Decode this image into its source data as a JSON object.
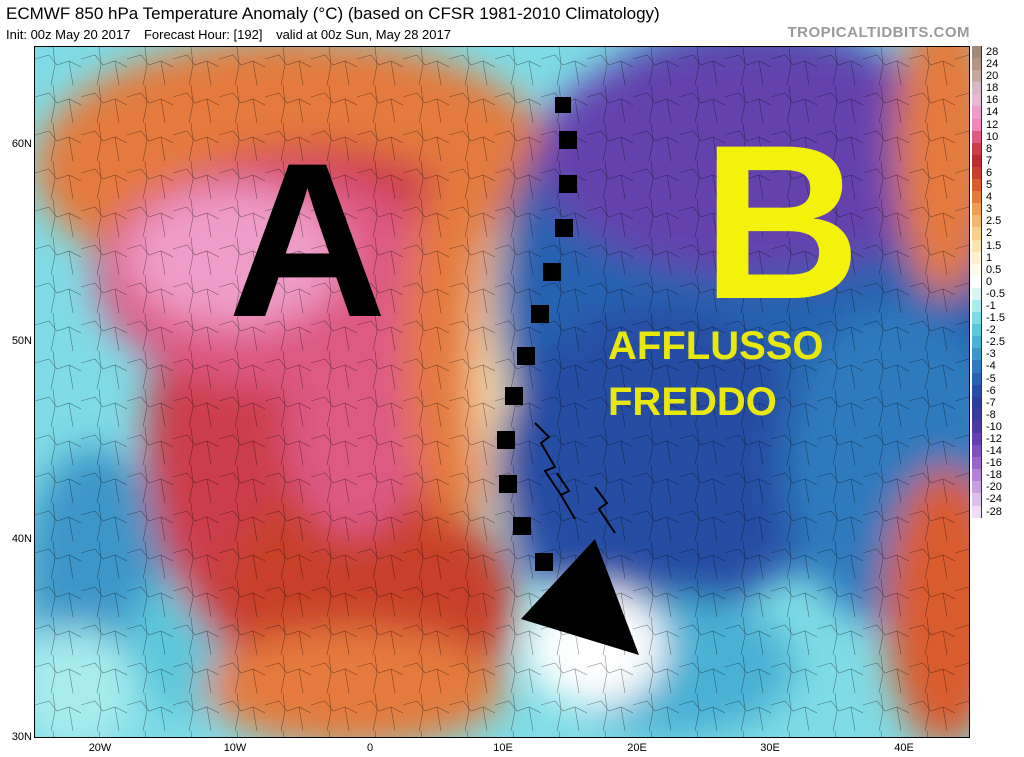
{
  "header": {
    "title": "ECMWF 850 hPa Temperature Anomaly (°C) (based on CFSR 1981-2010 Climatology)",
    "init": "Init: 00z May 20 2017",
    "forecast_hour": "Forecast Hour: [192]",
    "valid": "valid at 00z Sun, May 28 2017",
    "brand": "TROPICALTIDBITS.COM"
  },
  "axes": {
    "lat_labels": [
      "60N",
      "50N",
      "40N",
      "30N"
    ],
    "lon_labels": [
      "20W",
      "10W",
      "0",
      "10E",
      "20E",
      "30E",
      "40E"
    ]
  },
  "colorbar": {
    "levels": [
      "28",
      "24",
      "20",
      "18",
      "16",
      "14",
      "12",
      "10",
      "8",
      "7",
      "6",
      "5",
      "4",
      "3",
      "2.5",
      "2",
      "1.5",
      "1",
      "0.5",
      "0",
      "-0.5",
      "-1",
      "-1.5",
      "-2",
      "-2.5",
      "-3",
      "-4",
      "-5",
      "-6",
      "-7",
      "-8",
      "-10",
      "-12",
      "-14",
      "-16",
      "-18",
      "-20",
      "-24",
      "-28"
    ],
    "colors": [
      "#a38a78",
      "#b39485",
      "#c7a8a0",
      "#d8b8c4",
      "#e6b8d4",
      "#ee9cc8",
      "#ee88b8",
      "#dd5a84",
      "#cc3d4c",
      "#bb2c30",
      "#c8402c",
      "#d95b2e",
      "#e47a3c",
      "#ee9d55",
      "#f2b870",
      "#f7d08e",
      "#fae4ae",
      "#fdf2cf",
      "#fffbe8",
      "#ffffff",
      "#d8f5f5",
      "#a8ecee",
      "#7cdde6",
      "#5cc8dc",
      "#49b1d4",
      "#3c96c8",
      "#2f7abd",
      "#2862b0",
      "#264ea4",
      "#2c3f98",
      "#3a3a98",
      "#4a3aa0",
      "#6342ae",
      "#7e52bd",
      "#9866cb",
      "#b382d8",
      "#c99fe2",
      "#ddbfec",
      "#eedcf4"
    ]
  },
  "annotations": {
    "high_label": "A",
    "low_label": "B",
    "flow_line1": "AFFLUSSO",
    "flow_line2": "FREDDO"
  },
  "colors": {
    "annotation_yellow": "#f2f20a",
    "arrow": "#000000"
  }
}
